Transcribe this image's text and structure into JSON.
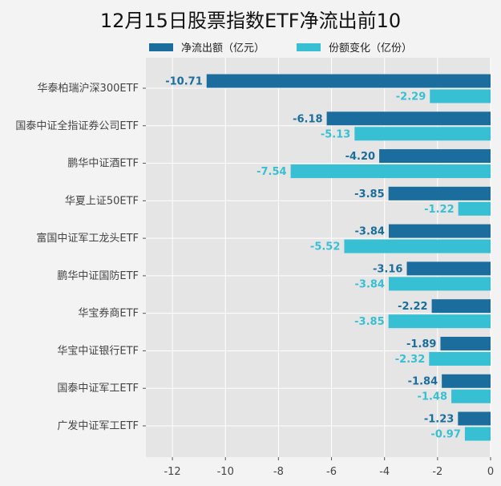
{
  "chart_data": {
    "type": "bar",
    "orientation": "horizontal",
    "title": "12月15日股票指数ETF净流出前10",
    "categories": [
      "华泰柏瑞沪深300ETF",
      "国泰中证全指证券公司ETF",
      "鹏华中证酒ETF",
      "华夏上证50ETF",
      "富国中证军工龙头ETF",
      "鹏华中证国防ETF",
      "华宝券商ETF",
      "华宝中证银行ETF",
      "国泰中证军工ETF",
      "广发中证军工ETF"
    ],
    "series": [
      {
        "name": "净流出额（亿元）",
        "color": "#1a6d9c",
        "values": [
          -10.71,
          -6.18,
          -4.2,
          -3.85,
          -3.84,
          -3.16,
          -2.22,
          -1.89,
          -1.84,
          -1.23
        ],
        "labels": [
          "-10.71",
          "-6.18",
          "-4.20",
          "-3.85",
          "-3.84",
          "-3.16",
          "-2.22",
          "-1.89",
          "-1.84",
          "-1.23"
        ]
      },
      {
        "name": "份额变化（亿份）",
        "color": "#37c0d3",
        "values": [
          -2.29,
          -5.13,
          -7.54,
          -1.22,
          -5.52,
          -3.84,
          -3.85,
          -2.32,
          -1.48,
          -0.97
        ],
        "labels": [
          "-2.29",
          "-5.13",
          "-7.54",
          "-1.22",
          "-5.52",
          "-3.84",
          "-3.85",
          "-2.32",
          "-1.48",
          "-0.97"
        ]
      }
    ],
    "xlim": [
      -13,
      0
    ],
    "xticks": [
      "-12",
      "-10",
      "-8",
      "-6",
      "-4",
      "-2",
      "0"
    ],
    "xtick_values": [
      -12,
      -10,
      -8,
      -6,
      -4,
      -2,
      0
    ],
    "grid": true,
    "legend_position": "top"
  }
}
